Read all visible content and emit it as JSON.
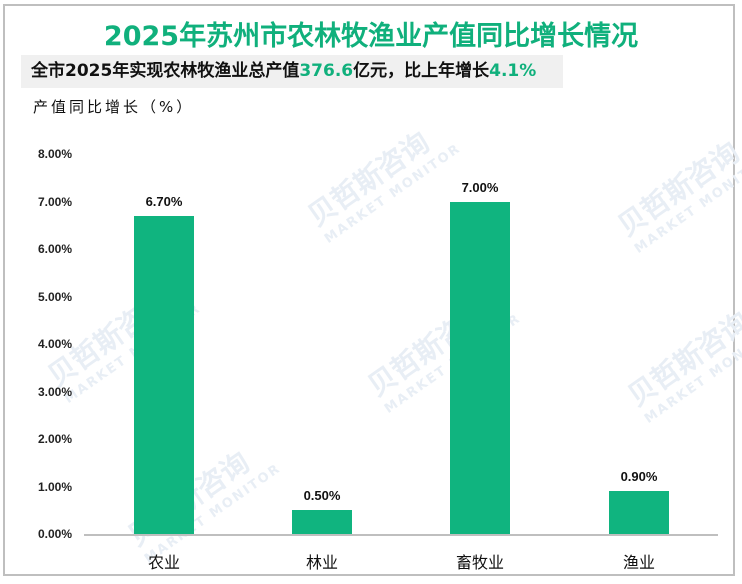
{
  "title": "2025年苏州市农林牧渔业产值同比增长情况",
  "subtitle": {
    "prefix": "全市2025年实现农林牧渔业总产值",
    "value": "376.6",
    "middle": "亿元，比上年增长",
    "growth": "4.1%"
  },
  "watermark": {
    "text": "贝哲斯咨询",
    "subtext": "MARKET MONITOR"
  },
  "colors": {
    "accent": "#10b07c",
    "bar": "#10b47f",
    "axis": "#bfbfbf",
    "subtitle_bg": "#f0f0f0"
  },
  "chart_data": {
    "type": "bar",
    "title": "2025年苏州市农林牧渔业产值同比增长情况",
    "subtitle": "全市2025年实现农林牧渔业总产值376.6亿元，比上年增长4.1%",
    "ylabel": "产值同比增长（%）",
    "xlabel": "",
    "categories": [
      "农业",
      "林业",
      "畜牧业",
      "渔业"
    ],
    "values": [
      6.7,
      0.5,
      7.0,
      0.9
    ],
    "value_labels": [
      "6.70%",
      "0.50%",
      "7.00%",
      "0.90%"
    ],
    "ylim": [
      0,
      8
    ],
    "yticks": [
      "0.00%",
      "1.00%",
      "2.00%",
      "3.00%",
      "4.00%",
      "5.00%",
      "6.00%",
      "7.00%",
      "8.00%"
    ],
    "grid": false,
    "legend": null
  }
}
